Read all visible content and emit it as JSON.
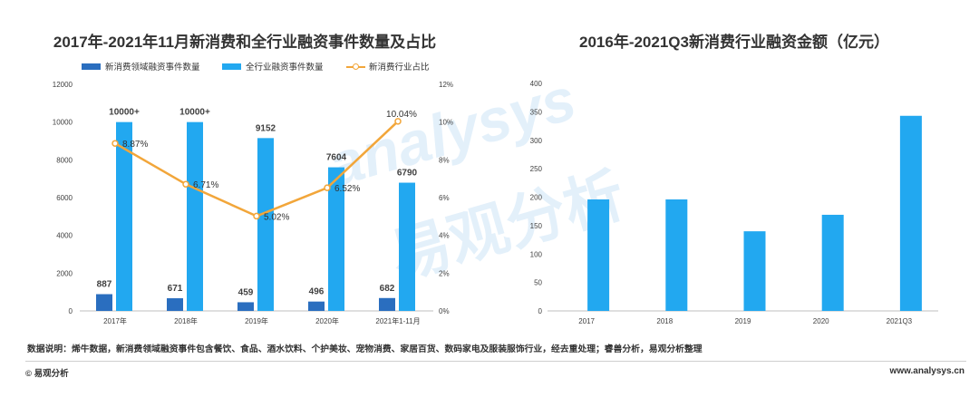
{
  "chart_data": [
    {
      "type": "bar",
      "title": "2017年-2021年11月新消费和全行业融资事件数量及占比",
      "categories": [
        "2017年",
        "2018年",
        "2019年",
        "2020年",
        "2021年1-11月"
      ],
      "series": [
        {
          "name": "新消费领域融资事件数量",
          "type": "bar",
          "color": "#2A6EBF",
          "values": [
            887,
            671,
            459,
            496,
            682
          ],
          "labels": [
            "887",
            "671",
            "459",
            "496",
            "682"
          ]
        },
        {
          "name": "全行业融资事件数量",
          "type": "bar",
          "color": "#22A8F0",
          "values": [
            10000,
            10000,
            9152,
            7604,
            6790
          ],
          "labels": [
            "10000+",
            "10000+",
            "9152",
            "7604",
            "6790"
          ]
        },
        {
          "name": "新消费行业占比",
          "type": "line",
          "color": "#F2A63A",
          "values": [
            8.87,
            6.71,
            5.02,
            6.52,
            10.04
          ],
          "labels": [
            "8.87%",
            "6.71%",
            "5.02%",
            "6.52%",
            "10.04%"
          ]
        }
      ],
      "y_left": {
        "lim": [
          0,
          12000
        ],
        "ticks": [
          "0",
          "2000",
          "4000",
          "6000",
          "8000",
          "10000",
          "12000"
        ]
      },
      "y_right": {
        "lim": [
          0,
          12
        ],
        "ticks": [
          "0%",
          "2%",
          "4%",
          "6%",
          "8%",
          "10%",
          "12%"
        ]
      },
      "legend": "top-left",
      "grid": false
    },
    {
      "type": "bar",
      "title": "2016年-2021Q3新消费行业融资金额（亿元）",
      "categories": [
        "2017",
        "2018",
        "2019",
        "2020",
        "2021Q3"
      ],
      "values": [
        196,
        196,
        140,
        169,
        343
      ],
      "color": "#22A8F0",
      "ylim": [
        0,
        400
      ],
      "yticks": [
        "0",
        "50",
        "100",
        "150",
        "200",
        "250",
        "300",
        "350",
        "400"
      ],
      "grid": false
    }
  ],
  "watermark": {
    "latin": "analysys",
    "cjk": "易观分析"
  },
  "footer": {
    "note": "数据说明：烯牛数据，新消费领域融资事件包含餐饮、食品、酒水饮料、个护美妆、宠物消费、家居百货、数码家电及服装服饰行业，经去重处理；睿兽分析，易观分析整理",
    "copyright": "© 易观分析",
    "url": "www.analysys.cn"
  }
}
